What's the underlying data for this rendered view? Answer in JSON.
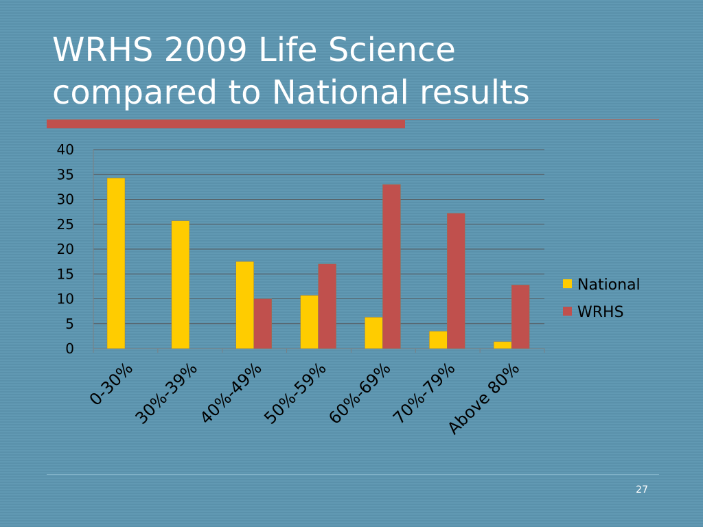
{
  "slide": {
    "title_line1": "WRHS 2009 Life Science",
    "title_line2": "compared to National results",
    "page_number": "27"
  },
  "colors": {
    "background": "#5f97b1",
    "accent_rule": "#c0504d",
    "national": "#ffcc00",
    "wrhs": "#c0504d"
  },
  "chart_data": {
    "type": "bar",
    "title": "",
    "xlabel": "",
    "ylabel": "",
    "categories": [
      "0-30%",
      "30%-39%",
      "40%-49%",
      "50%-59%",
      "60%-69%",
      "70%-79%",
      "Above 80%"
    ],
    "series": [
      {
        "name": "National",
        "color": "#ffcc00",
        "values": [
          34.3,
          25.7,
          17.5,
          10.7,
          6.3,
          3.5,
          1.4
        ]
      },
      {
        "name": "WRHS",
        "color": "#c0504d",
        "values": [
          0,
          0,
          10,
          17,
          33,
          27.2,
          12.8
        ]
      }
    ],
    "ylim": [
      0,
      40
    ],
    "yticks": [
      "0",
      "5",
      "10",
      "15",
      "20",
      "25",
      "30",
      "35",
      "40"
    ],
    "grid": true,
    "legend_position": "right"
  }
}
